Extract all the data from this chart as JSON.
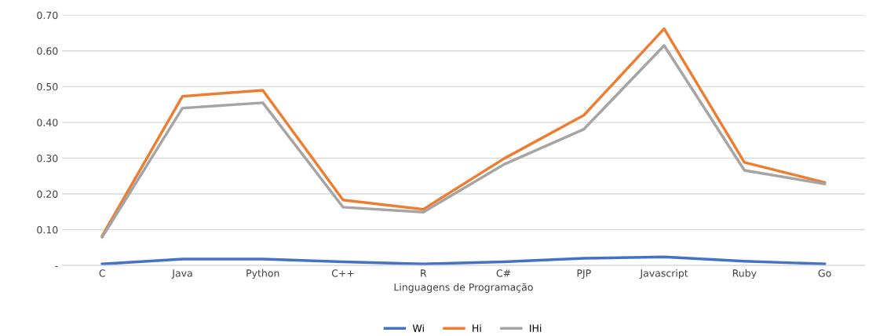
{
  "chart_data": {
    "type": "line",
    "xlabel": "Linguagens de Programação",
    "categories": [
      "C",
      "Java",
      "Python",
      "C++",
      "R",
      "C#",
      "PJP",
      "Javascript",
      "Ruby",
      "Go"
    ],
    "series": [
      {
        "name": "Wi",
        "color": "#4472c4",
        "values": [
          0.004,
          0.018,
          0.018,
          0.01,
          0.004,
          0.01,
          0.02,
          0.024,
          0.012,
          0.004
        ]
      },
      {
        "name": "Hi",
        "color": "#ed7d31",
        "values": [
          0.083,
          0.473,
          0.49,
          0.183,
          0.157,
          0.298,
          0.42,
          0.662,
          0.288,
          0.232
        ]
      },
      {
        "name": "IHi",
        "color": "#a5a5a5",
        "values": [
          0.079,
          0.44,
          0.455,
          0.163,
          0.149,
          0.282,
          0.381,
          0.615,
          0.266,
          0.228
        ]
      }
    ],
    "ylim": [
      0,
      0.7
    ],
    "yticks": [
      {
        "value": 0,
        "label": "-"
      },
      {
        "value": 0.1,
        "label": "0.10"
      },
      {
        "value": 0.2,
        "label": "0.20"
      },
      {
        "value": 0.3,
        "label": "0.30"
      },
      {
        "value": 0.4,
        "label": "0.40"
      },
      {
        "value": 0.5,
        "label": "0.50"
      },
      {
        "value": 0.6,
        "label": "0.60"
      },
      {
        "value": 0.7,
        "label": "0.70"
      }
    ],
    "grid": "y",
    "legend": "bottom",
    "marker": "none",
    "line_style": "solid"
  }
}
